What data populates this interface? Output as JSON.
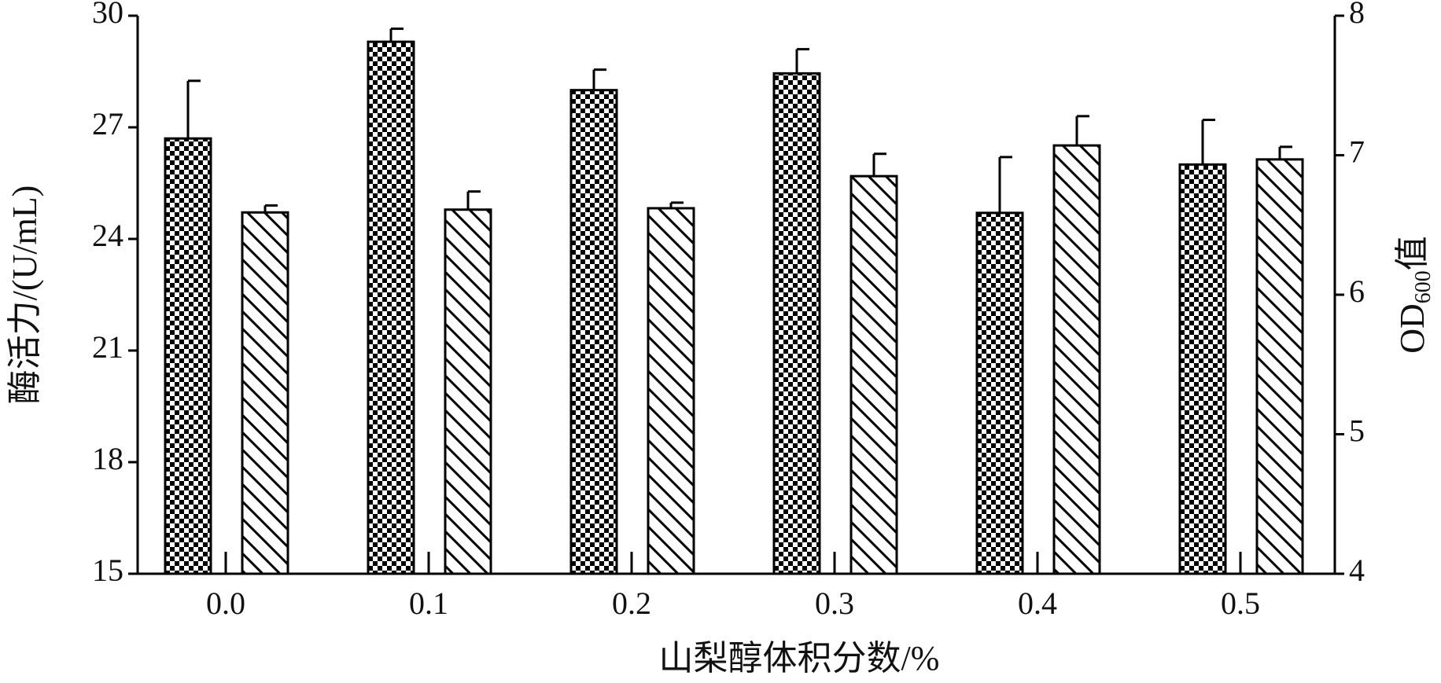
{
  "chart_data": {
    "type": "bar",
    "xlabel": "山梨醇体积分数/%",
    "ylabel": "酶活力/(U/mL)",
    "y2label": [
      "OD",
      "600",
      "值"
    ],
    "categories": [
      "0.0",
      "0.1",
      "0.2",
      "0.3",
      "0.4",
      "0.5"
    ],
    "series": [
      {
        "color": "#000000",
        "pattern": "checker",
        "values": [
          26.7,
          29.3,
          28.0,
          28.45,
          24.7,
          26.0
        ],
        "errors": [
          1.55,
          0.35,
          0.55,
          0.65,
          1.5,
          1.2
        ]
      },
      {
        "color": "#000000",
        "pattern": "hatch",
        "axis": "y2",
        "values": [
          6.59,
          6.61,
          6.62,
          6.85,
          7.07,
          6.97
        ],
        "errors": [
          0.05,
          0.13,
          0.04,
          0.16,
          0.21,
          0.09
        ]
      }
    ],
    "ylim": [
      15,
      30
    ],
    "yticks": [
      15,
      18,
      21,
      24,
      27,
      30
    ],
    "y2lim": [
      4,
      8
    ],
    "y2ticks": [
      4,
      5,
      6,
      7,
      8
    ]
  }
}
